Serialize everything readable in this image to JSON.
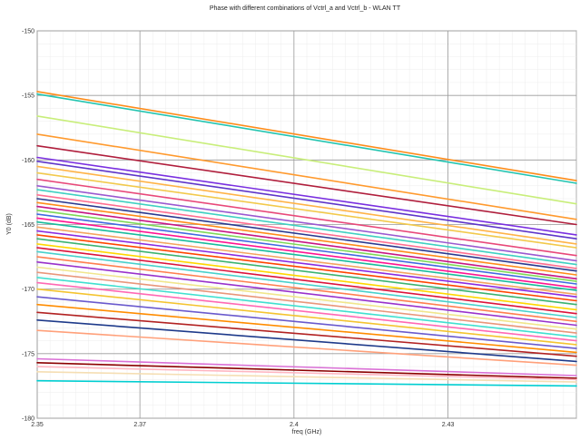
{
  "chart_data": {
    "type": "line",
    "title": "Phase with different combinations of Vctrl_a and Vctrl_b - WLAN TT",
    "xlabel": "freq (GHz)",
    "ylabel": "Y0 (dB)",
    "xlim": [
      2.35,
      2.455
    ],
    "ylim": [
      -180,
      -150
    ],
    "x_ticks": [
      2.35,
      2.37,
      2.4,
      2.43
    ],
    "y_ticks": [
      -150,
      -155,
      -160,
      -165,
      -170,
      -175,
      -180
    ],
    "grid": true,
    "x": [
      2.35,
      2.455
    ],
    "series": [
      {
        "color": "#ff8c1a",
        "values": [
          -154.7,
          -161.6
        ]
      },
      {
        "color": "#22c4b0",
        "values": [
          -154.9,
          -161.8
        ]
      },
      {
        "color": "#c8ee7a",
        "values": [
          -156.6,
          -163.4
        ]
      },
      {
        "color": "#ff9a2e",
        "values": [
          -158.0,
          -164.6
        ]
      },
      {
        "color": "#b01e3c",
        "values": [
          -158.9,
          -165.0
        ]
      },
      {
        "color": "#7a2fe0",
        "values": [
          -159.8,
          -165.8
        ]
      },
      {
        "color": "#5e35c9",
        "values": [
          -160.1,
          -166.1
        ]
      },
      {
        "color": "#ffb347",
        "values": [
          -160.5,
          -166.5
        ]
      },
      {
        "color": "#f2c94c",
        "values": [
          -161.0,
          -166.8
        ]
      },
      {
        "color": "#e8497a",
        "values": [
          -161.5,
          -167.4
        ]
      },
      {
        "color": "#9b59d0",
        "values": [
          -162.0,
          -167.8
        ]
      },
      {
        "color": "#3fd1c2",
        "values": [
          -162.3,
          -168.1
        ]
      },
      {
        "color": "#ff6f91",
        "values": [
          -162.7,
          -168.4
        ]
      },
      {
        "color": "#2b3a8f",
        "values": [
          -163.0,
          -168.6
        ]
      },
      {
        "color": "#ff8c1a",
        "values": [
          -163.3,
          -168.9
        ]
      },
      {
        "color": "#c71585",
        "values": [
          -163.6,
          -169.2
        ]
      },
      {
        "color": "#7ed957",
        "values": [
          -163.9,
          -169.4
        ]
      },
      {
        "color": "#4169e1",
        "values": [
          -164.2,
          -169.6
        ]
      },
      {
        "color": "#ff1493",
        "values": [
          -164.5,
          -169.9
        ]
      },
      {
        "color": "#1abc9c",
        "values": [
          -164.8,
          -170.1
        ]
      },
      {
        "color": "#f4a460",
        "values": [
          -165.2,
          -170.4
        ]
      },
      {
        "color": "#8a2be2",
        "values": [
          -165.5,
          -170.6
        ]
      },
      {
        "color": "#ff4500",
        "values": [
          -165.8,
          -170.9
        ]
      },
      {
        "color": "#3cb371",
        "values": [
          -166.1,
          -171.2
        ]
      },
      {
        "color": "#ffd700",
        "values": [
          -166.5,
          -171.6
        ]
      },
      {
        "color": "#dc143c",
        "values": [
          -166.8,
          -171.9
        ]
      },
      {
        "color": "#48d1cc",
        "values": [
          -167.1,
          -172.2
        ]
      },
      {
        "color": "#ff7f50",
        "values": [
          -167.5,
          -172.5
        ]
      },
      {
        "color": "#9932cc",
        "values": [
          -167.9,
          -172.8
        ]
      },
      {
        "color": "#f0e68c",
        "values": [
          -168.3,
          -173.1
        ]
      },
      {
        "color": "#e9967a",
        "values": [
          -168.7,
          -173.4
        ]
      },
      {
        "color": "#40e0d0",
        "values": [
          -169.1,
          -173.7
        ]
      },
      {
        "color": "#ff69b4",
        "values": [
          -169.5,
          -174.0
        ]
      },
      {
        "color": "#f4c430",
        "values": [
          -170.0,
          -174.3
        ]
      },
      {
        "color": "#6a5acd",
        "values": [
          -170.6,
          -174.6
        ]
      },
      {
        "color": "#ff8c00",
        "values": [
          -171.2,
          -174.9
        ]
      },
      {
        "color": "#b22222",
        "values": [
          -171.8,
          -175.2
        ]
      },
      {
        "color": "#1e3a8a",
        "values": [
          -172.4,
          -175.6
        ]
      },
      {
        "color": "#ffa07a",
        "values": [
          -173.2,
          -175.9
        ]
      },
      {
        "color": "#da70d6",
        "values": [
          -175.4,
          -176.7
        ]
      },
      {
        "color": "#8b0000",
        "values": [
          -175.7,
          -176.9
        ]
      },
      {
        "color": "#ffb6c1",
        "values": [
          -176.0,
          -177.0
        ]
      },
      {
        "color": "#f5deb3",
        "values": [
          -176.4,
          -177.2
        ]
      },
      {
        "color": "#00ced1",
        "values": [
          -177.1,
          -177.5
        ]
      }
    ]
  }
}
